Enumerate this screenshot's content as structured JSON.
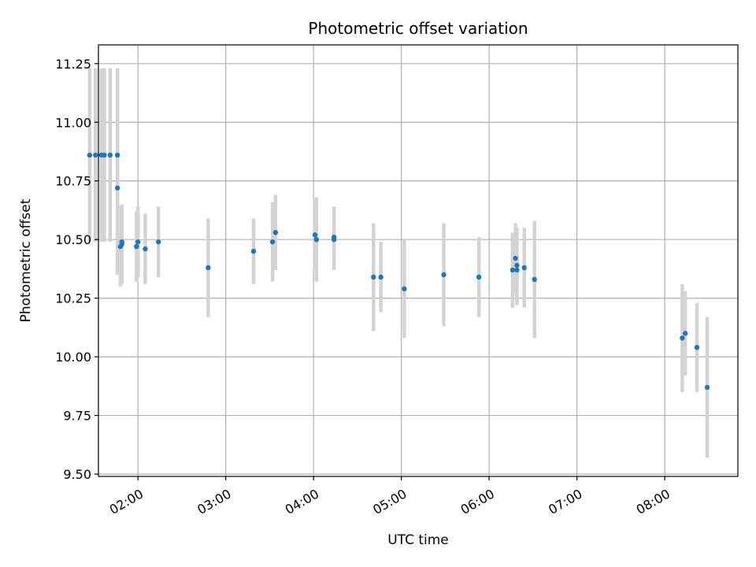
{
  "chart_data": {
    "type": "scatter",
    "title": "Photometric offset variation",
    "xlabel": "UTC time",
    "ylabel": "Photometric offset",
    "grid": true,
    "x_ticks": [
      "02:00",
      "03:00",
      "04:00",
      "05:00",
      "06:00",
      "07:00",
      "08:00"
    ],
    "y_ticks": [
      "9.50",
      "9.75",
      "10.00",
      "10.25",
      "10.50",
      "10.75",
      "11.00",
      "11.25"
    ],
    "xlim": [
      "01:33",
      "08:50"
    ],
    "ylim": [
      9.49,
      11.33
    ],
    "colors": {
      "point": "#1f77b4",
      "errorbar": "#d3d3d3",
      "grid": "#b0b0b0"
    },
    "series": [
      {
        "points": [
          {
            "x": "01:27",
            "y": 10.86,
            "err": 0.37
          },
          {
            "x": "01:31",
            "y": 10.86,
            "err": 0.37
          },
          {
            "x": "01:35",
            "y": 10.86,
            "err": 0.37
          },
          {
            "x": "01:37",
            "y": 10.86,
            "err": 0.37
          },
          {
            "x": "01:41",
            "y": 10.86,
            "err": 0.37
          },
          {
            "x": "01:46",
            "y": 10.86,
            "err": 0.37
          },
          {
            "x": "01:46",
            "y": 10.72,
            "err": 0.37
          },
          {
            "x": "01:48",
            "y": 10.47,
            "err": 0.17
          },
          {
            "x": "01:49",
            "y": 10.48,
            "err": 0.17
          },
          {
            "x": "01:49",
            "y": 10.49,
            "err": 0.16
          },
          {
            "x": "01:59",
            "y": 10.47,
            "err": 0.15
          },
          {
            "x": "02:00",
            "y": 10.49,
            "err": 0.15
          },
          {
            "x": "02:05",
            "y": 10.46,
            "err": 0.15
          },
          {
            "x": "02:14",
            "y": 10.49,
            "err": 0.15
          },
          {
            "x": "02:48",
            "y": 10.38,
            "err": 0.21
          },
          {
            "x": "03:19",
            "y": 10.45,
            "err": 0.14
          },
          {
            "x": "03:32",
            "y": 10.49,
            "err": 0.17
          },
          {
            "x": "03:34",
            "y": 10.53,
            "err": 0.16
          },
          {
            "x": "04:01",
            "y": 10.52,
            "err": 0.15
          },
          {
            "x": "04:02",
            "y": 10.5,
            "err": 0.18
          },
          {
            "x": "04:14",
            "y": 10.51,
            "err": 0.13
          },
          {
            "x": "04:14",
            "y": 10.5,
            "err": 0.13
          },
          {
            "x": "04:41",
            "y": 10.34,
            "err": 0.23
          },
          {
            "x": "04:46",
            "y": 10.34,
            "err": 0.15
          },
          {
            "x": "05:02",
            "y": 10.29,
            "err": 0.21
          },
          {
            "x": "05:29",
            "y": 10.35,
            "err": 0.22
          },
          {
            "x": "05:53",
            "y": 10.34,
            "err": 0.17
          },
          {
            "x": "06:16",
            "y": 10.37,
            "err": 0.16
          },
          {
            "x": "06:18",
            "y": 10.42,
            "err": 0.15
          },
          {
            "x": "06:19",
            "y": 10.39,
            "err": 0.16
          },
          {
            "x": "06:19",
            "y": 10.37,
            "err": 0.15
          },
          {
            "x": "06:24",
            "y": 10.38,
            "err": 0.17
          },
          {
            "x": "06:31",
            "y": 10.33,
            "err": 0.25
          },
          {
            "x": "08:12",
            "y": 10.08,
            "err": 0.23
          },
          {
            "x": "08:14",
            "y": 10.1,
            "err": 0.18
          },
          {
            "x": "08:22",
            "y": 10.04,
            "err": 0.19
          },
          {
            "x": "08:29",
            "y": 9.87,
            "err": 0.3
          }
        ]
      }
    ]
  }
}
